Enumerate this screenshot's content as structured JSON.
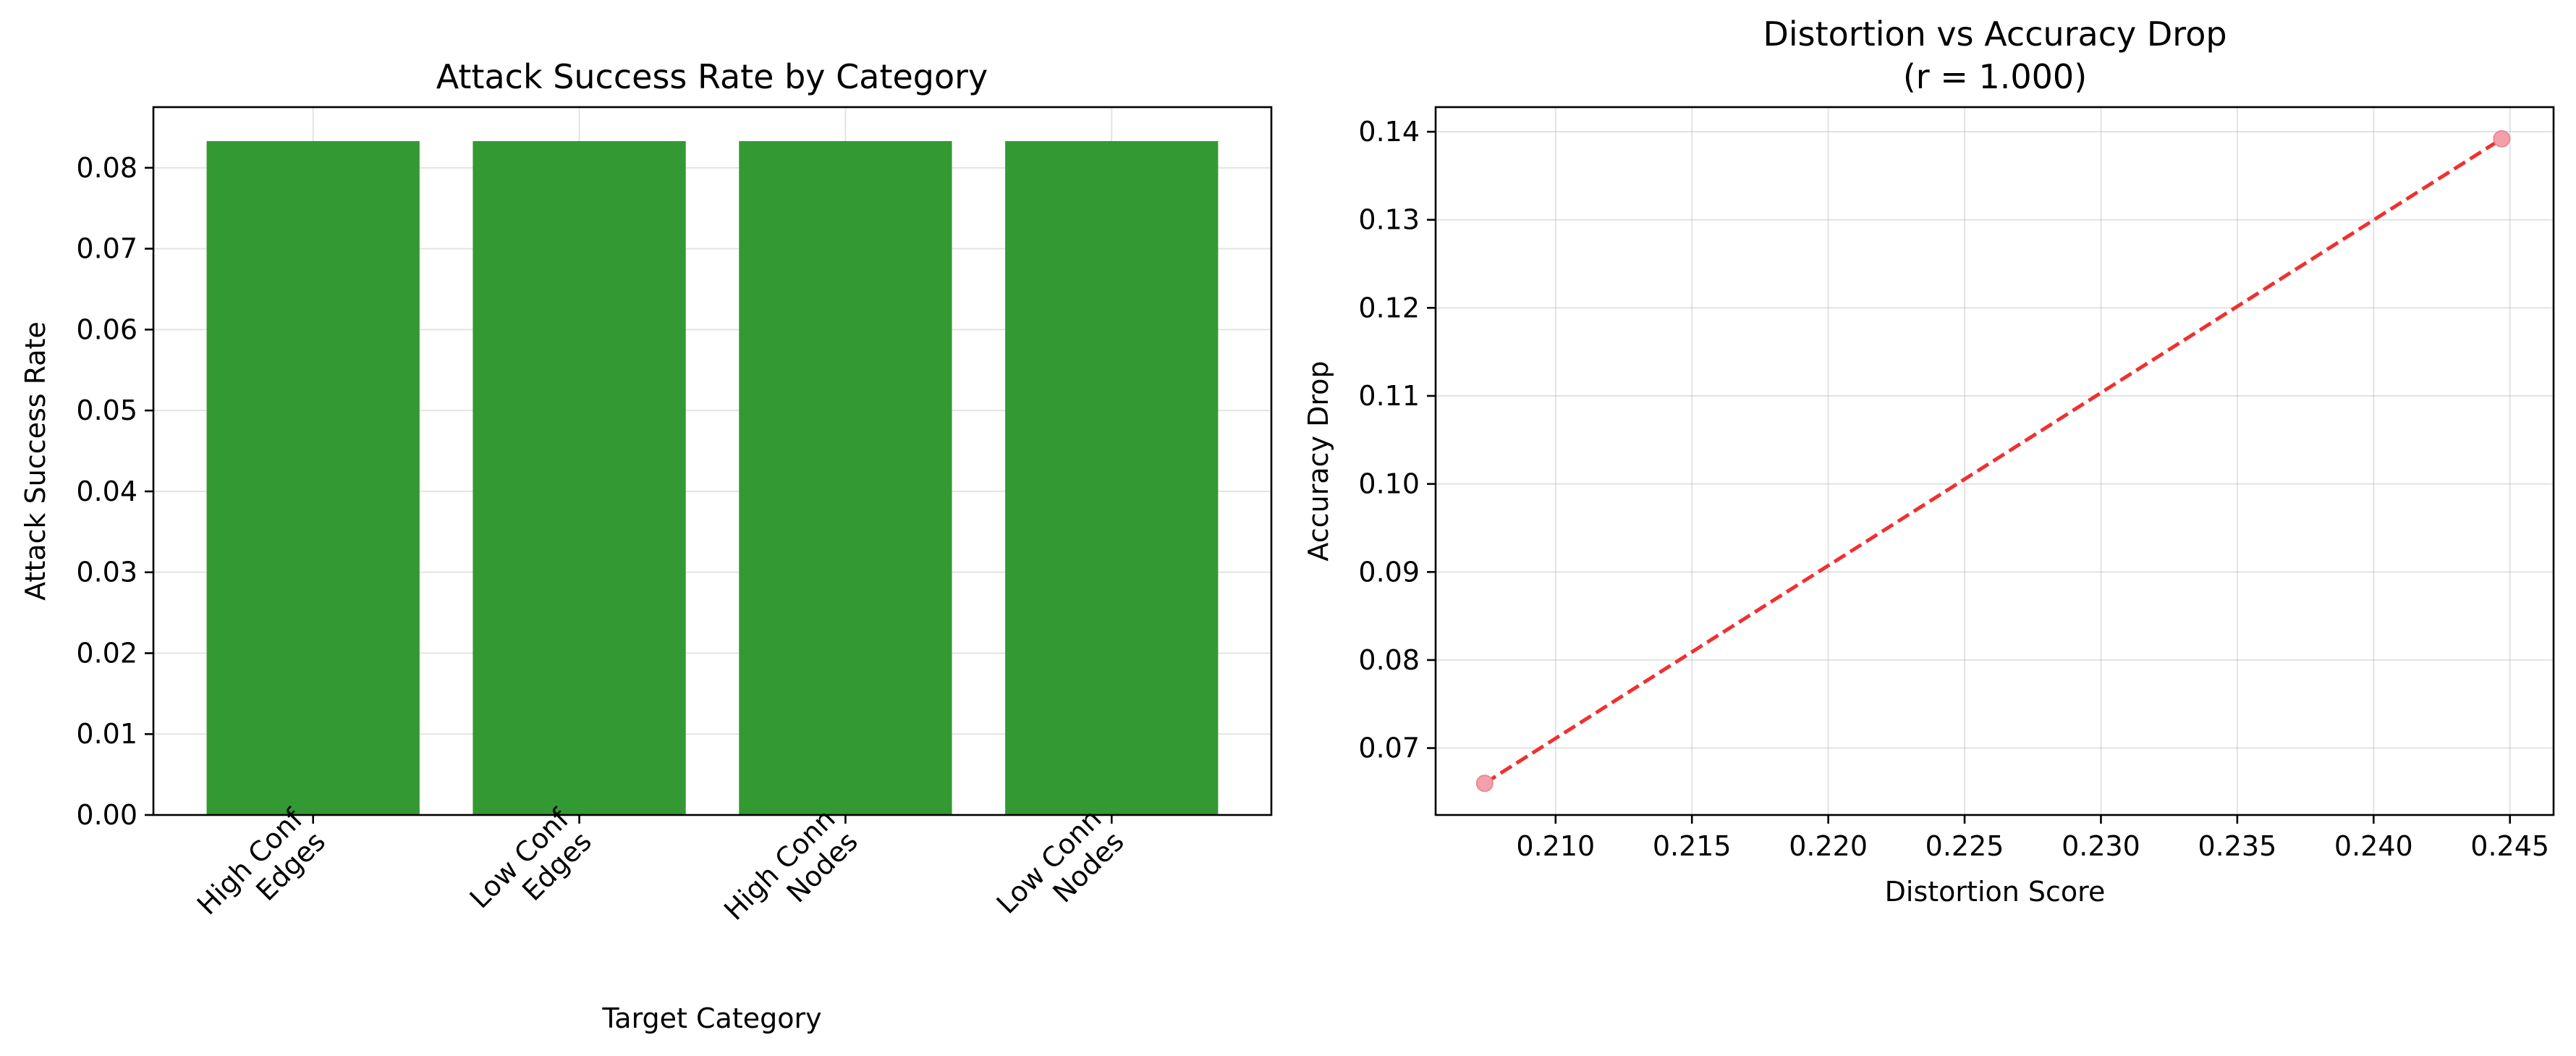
{
  "chart_data": [
    {
      "type": "bar",
      "title": "Attack Success Rate by Category",
      "xlabel": "Target Category",
      "ylabel": "Attack Success Rate",
      "categories": [
        [
          "High Conf",
          "Edges"
        ],
        [
          "Low Conf",
          "Edges"
        ],
        [
          "High Conn",
          "Nodes"
        ],
        [
          "Low Conn",
          "Nodes"
        ]
      ],
      "values": [
        0.0833,
        0.0833,
        0.0833,
        0.0833
      ],
      "ylim": [
        0,
        0.0875
      ],
      "yticks": [
        "0.00",
        "0.01",
        "0.02",
        "0.03",
        "0.04",
        "0.05",
        "0.06",
        "0.07",
        "0.08"
      ],
      "bar_color": "#339933",
      "grid": true
    },
    {
      "type": "scatter",
      "title": "Distortion vs Accuracy Drop",
      "subtitle": "(r = 1.000)",
      "xlabel": "Distortion Score",
      "ylabel": "Accuracy Drop",
      "points": [
        {
          "x": 0.2074,
          "y": 0.066
        },
        {
          "x": 0.2447,
          "y": 0.1392
        }
      ],
      "fit_line": {
        "x": [
          0.2074,
          0.2447
        ],
        "y": [
          0.066,
          0.1392
        ]
      },
      "xlim": [
        0.2056,
        0.2466
      ],
      "ylim": [
        0.0624,
        0.1428
      ],
      "xticks": [
        "0.210",
        "0.215",
        "0.220",
        "0.225",
        "0.230",
        "0.235",
        "0.240",
        "0.245"
      ],
      "yticks": [
        "0.07",
        "0.08",
        "0.09",
        "0.10",
        "0.11",
        "0.12",
        "0.13",
        "0.14"
      ],
      "point_color": "#f4a0aa",
      "line_color": "#f03030",
      "grid": true
    }
  ]
}
